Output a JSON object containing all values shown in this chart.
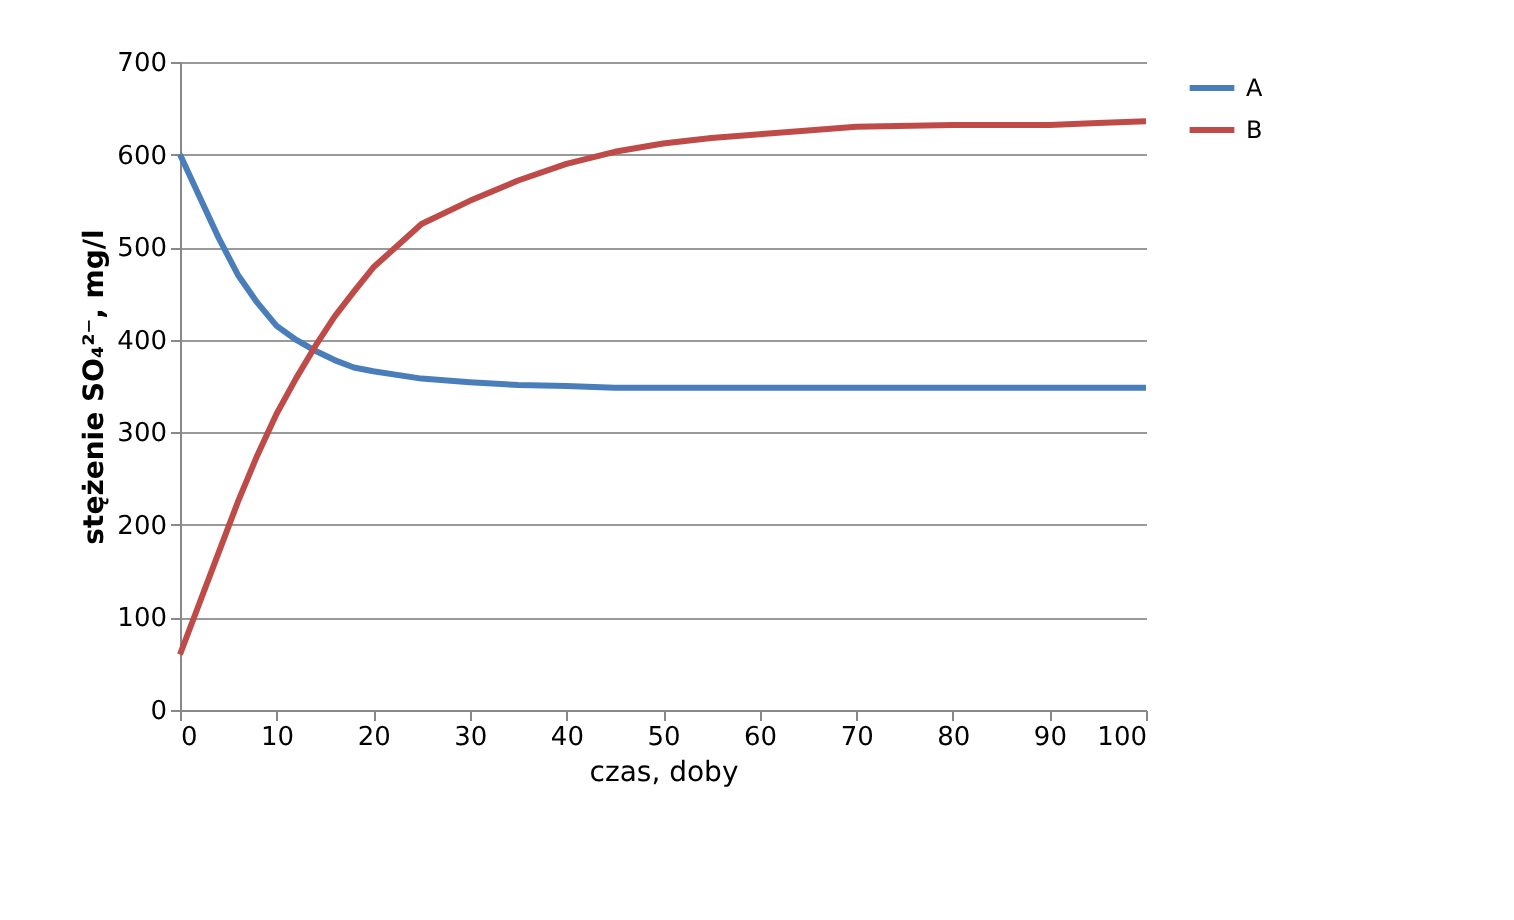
{
  "chart_data": {
    "type": "line",
    "xlabel": "czas, doby",
    "ylabel": "stężenie SO₄²⁻, mg/l",
    "x": [
      0,
      2,
      4,
      6,
      8,
      10,
      12,
      14,
      16,
      18,
      20,
      25,
      30,
      35,
      40,
      45,
      50,
      55,
      60,
      65,
      70,
      80,
      90,
      95,
      100
    ],
    "series": [
      {
        "name": "A",
        "color": "#4a7ebb",
        "values": [
          600,
          555,
          510,
          470,
          440,
          415,
          400,
          388,
          378,
          370,
          366,
          358,
          354,
          351,
          350,
          348,
          348,
          348,
          348,
          348,
          348,
          348,
          348,
          348,
          348
        ]
      },
      {
        "name": "B",
        "color": "#be4b48",
        "values": [
          60,
          115,
          170,
          225,
          275,
          320,
          358,
          393,
          425,
          452,
          478,
          525,
          550,
          572,
          590,
          603,
          612,
          618,
          622,
          626,
          630,
          632,
          632,
          634,
          636
        ]
      }
    ],
    "xlim": [
      0,
      100
    ],
    "xticks": [
      0,
      10,
      20,
      30,
      40,
      50,
      60,
      70,
      80,
      90,
      100
    ],
    "ylim": [
      0,
      700
    ],
    "yticks": [
      0,
      100,
      200,
      300,
      400,
      500,
      600,
      700
    ],
    "grid": "y",
    "legend": "right",
    "marker": "none",
    "line_style": "solid"
  }
}
